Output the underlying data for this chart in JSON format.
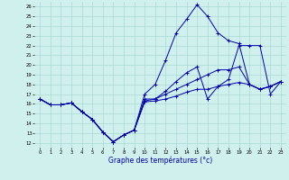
{
  "xlabel": "Graphe des températures (°c)",
  "bg_color": "#cff0ec",
  "grid_color": "#aad8d3",
  "line_color": "#0000aa",
  "xlim": [
    -0.5,
    23.5
  ],
  "ylim": [
    11.5,
    26.5
  ],
  "yticks": [
    12,
    13,
    14,
    15,
    16,
    17,
    18,
    19,
    20,
    21,
    22,
    23,
    24,
    25,
    26
  ],
  "xticks": [
    0,
    1,
    2,
    3,
    4,
    5,
    6,
    7,
    8,
    9,
    10,
    11,
    12,
    13,
    14,
    15,
    16,
    17,
    18,
    19,
    20,
    21,
    22,
    23
  ],
  "series": [
    {
      "x": [
        0,
        1,
        2,
        3,
        4,
        5,
        6,
        7,
        8,
        9,
        10,
        11,
        12,
        13,
        14,
        15,
        16,
        17,
        18,
        19,
        20,
        21,
        22,
        23
      ],
      "y": [
        16.5,
        15.9,
        15.9,
        16.1,
        15.2,
        14.4,
        13.1,
        12.1,
        12.8,
        13.3,
        16.5,
        16.5,
        17.0,
        17.5,
        18.0,
        18.5,
        19.0,
        19.5,
        19.5,
        19.8,
        18.0,
        17.5,
        17.8,
        18.3
      ]
    },
    {
      "x": [
        0,
        1,
        2,
        3,
        4,
        5,
        6,
        7,
        8,
        9,
        10,
        11,
        12,
        13,
        14,
        15,
        16,
        17,
        18,
        19,
        20,
        21,
        22,
        23
      ],
      "y": [
        16.5,
        15.9,
        15.9,
        16.1,
        15.2,
        14.4,
        13.1,
        12.1,
        12.8,
        13.3,
        17.0,
        18.0,
        20.5,
        23.3,
        24.7,
        26.2,
        25.0,
        23.3,
        22.5,
        22.2,
        18.0,
        17.5,
        17.8,
        18.3
      ]
    },
    {
      "x": [
        0,
        1,
        2,
        3,
        4,
        5,
        6,
        7,
        8,
        9,
        10,
        11,
        12,
        13,
        14,
        15,
        16,
        17,
        18,
        19,
        20,
        21,
        22,
        23
      ],
      "y": [
        16.5,
        15.9,
        15.9,
        16.1,
        15.2,
        14.4,
        13.1,
        12.1,
        12.8,
        13.3,
        16.3,
        16.5,
        17.3,
        18.3,
        19.2,
        19.8,
        16.5,
        17.8,
        18.5,
        22.0,
        22.0,
        22.0,
        17.0,
        18.3
      ]
    },
    {
      "x": [
        0,
        1,
        2,
        3,
        4,
        5,
        6,
        7,
        8,
        9,
        10,
        11,
        12,
        13,
        14,
        15,
        16,
        17,
        18,
        19,
        20,
        21,
        22,
        23
      ],
      "y": [
        16.5,
        15.9,
        15.9,
        16.1,
        15.2,
        14.4,
        13.1,
        12.1,
        12.8,
        13.3,
        16.2,
        16.3,
        16.5,
        16.8,
        17.2,
        17.5,
        17.5,
        17.8,
        18.0,
        18.2,
        18.0,
        17.5,
        17.8,
        18.3
      ]
    }
  ]
}
